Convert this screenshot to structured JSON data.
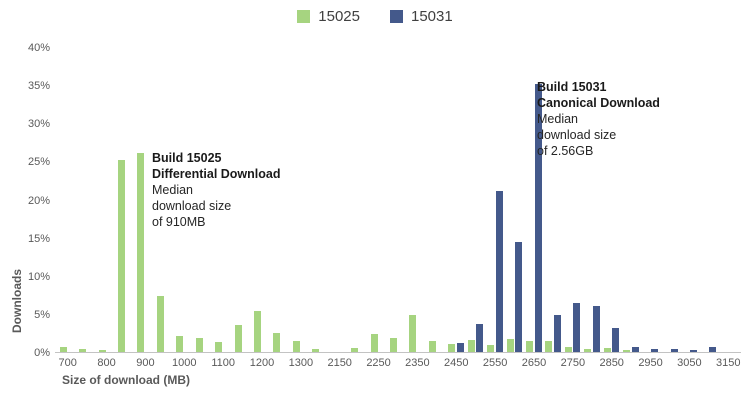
{
  "legend": {
    "items": [
      {
        "label": "15025",
        "color": "#a6d480"
      },
      {
        "label": "15031",
        "color": "#44598b"
      }
    ]
  },
  "axes": {
    "y_title": "Downloads",
    "x_title": "Size of download (MB)"
  },
  "annotations": {
    "a15025": {
      "bold1": "Build 15025",
      "bold2": "Differential Download",
      "line1": "Median",
      "line2": "download size",
      "line3": "of 910MB"
    },
    "a15031": {
      "bold1": "Build 15031",
      "bold2": "Canonical Download",
      "line1": "Median",
      "line2": "download size",
      "line3": "of 2.56GB"
    }
  },
  "colors": {
    "green_series": "#a6d480",
    "blue_series": "#44598b",
    "axis_line": "#c3c3c3",
    "tick_text": "#595959",
    "legend_text": "#404040",
    "annotation_text": "#262626"
  },
  "chart_data": {
    "type": "bar",
    "title": "",
    "xlabel": "Size of download (MB)",
    "ylabel": "Downloads",
    "ylim": [
      0,
      40
    ],
    "y_ticks": [
      0,
      5,
      10,
      15,
      20,
      25,
      30,
      35,
      40
    ],
    "y_tick_suffix": "%",
    "x_tick_every": 2,
    "grid": false,
    "legend_position": "top",
    "categories": [
      700,
      750,
      800,
      850,
      900,
      950,
      1000,
      1050,
      1100,
      1150,
      1200,
      1250,
      1300,
      1350,
      2150,
      2200,
      2250,
      2300,
      2350,
      2400,
      2450,
      2500,
      2550,
      2600,
      2650,
      2700,
      2750,
      2800,
      2850,
      2900,
      2950,
      3000,
      3050,
      3100,
      3150
    ],
    "series": [
      {
        "name": "15025",
        "color": "#a6d480",
        "values": [
          0.6,
          0.4,
          0.2,
          25.2,
          26.1,
          7.3,
          2.1,
          1.9,
          1.3,
          3.6,
          5.4,
          2.5,
          1.5,
          0.4,
          0,
          0.5,
          2.4,
          1.8,
          4.9,
          1.5,
          1.1,
          1.6,
          0.9,
          1.7,
          1.4,
          1.4,
          0.7,
          0.4,
          0.5,
          0.2,
          0,
          0,
          0,
          0,
          0
        ]
      },
      {
        "name": "15031",
        "color": "#44598b",
        "values": [
          0,
          0,
          0,
          0,
          0,
          0,
          0,
          0,
          0,
          0,
          0,
          0,
          0,
          0,
          0,
          0,
          0,
          0,
          0,
          0,
          1.2,
          3.7,
          21.1,
          14.4,
          35.2,
          4.9,
          6.4,
          6.0,
          3.1,
          0.6,
          0.4,
          0.4,
          0.3,
          0.7,
          0
        ]
      }
    ]
  }
}
